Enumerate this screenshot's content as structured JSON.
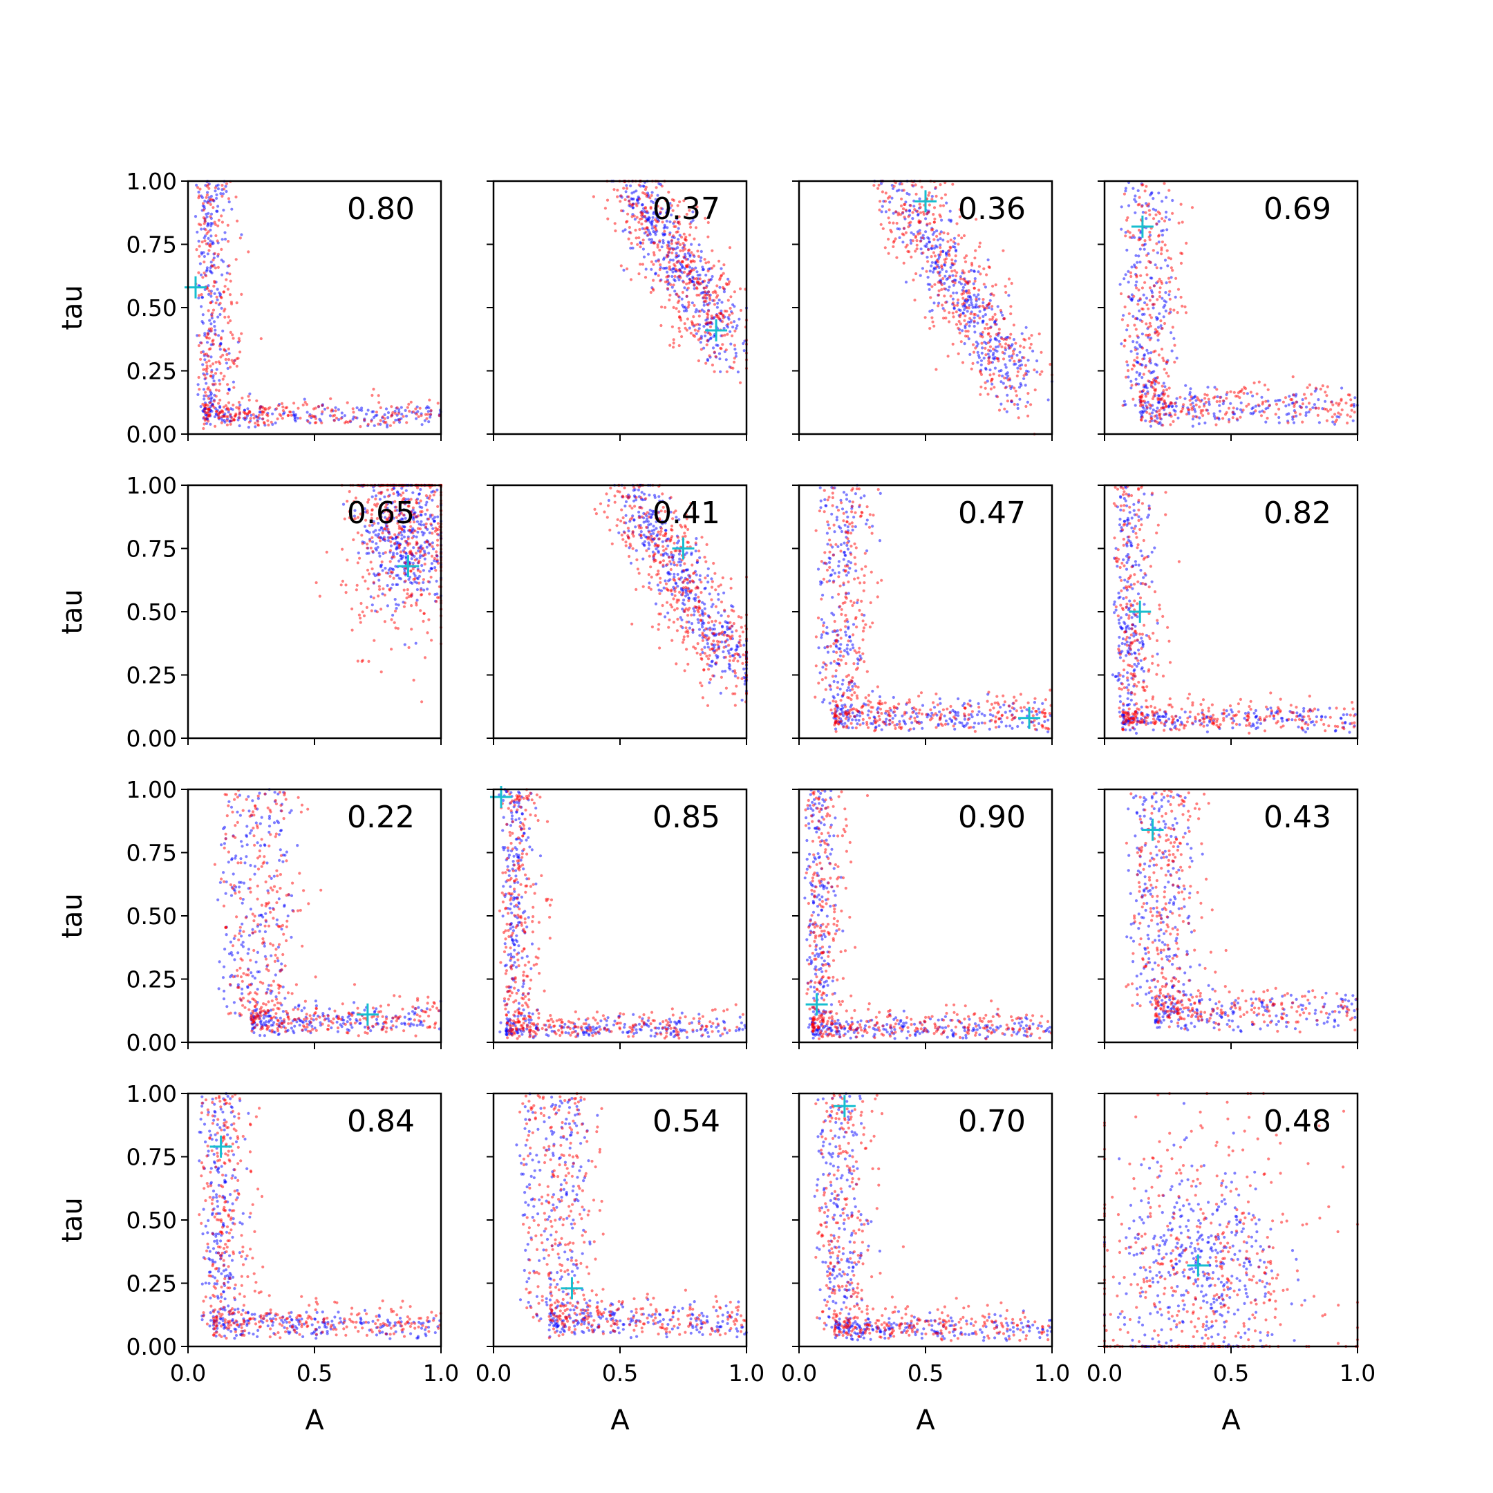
{
  "colors": {
    "series_blue": "#0000ff",
    "series_red": "#ff0000",
    "marker": "#17becf",
    "axes": "#000000",
    "background": "#ffffff"
  },
  "chart_data": {
    "type": "scatter",
    "layout": "4x4 grid of panels with shared axes",
    "xlabel": "A",
    "ylabel": "tau",
    "xlim": [
      0,
      1
    ],
    "ylim": [
      0,
      1
    ],
    "xticks": [
      "0.0",
      "0.5",
      "1.0"
    ],
    "yticks": [
      "0.00",
      "0.25",
      "0.50",
      "0.75",
      "1.00"
    ],
    "grid": false,
    "legend": "none",
    "panels": [
      {
        "label": "0.80",
        "shape": "L",
        "center": [
          0.06,
          0.06
        ],
        "marker": [
          0.03,
          0.58
        ]
      },
      {
        "label": "0.37",
        "shape": "diag",
        "a": [
          0.55,
          0.97
        ],
        "b": [
          0.93,
          0.35
        ],
        "marker": [
          0.88,
          0.41
        ]
      },
      {
        "label": "0.36",
        "shape": "diag",
        "a": [
          0.4,
          0.95
        ],
        "b": [
          0.88,
          0.18
        ],
        "marker": [
          0.5,
          0.92
        ]
      },
      {
        "label": "0.69",
        "shape": "L",
        "center": [
          0.14,
          0.1
        ],
        "marker": [
          0.15,
          0.82
        ]
      },
      {
        "label": "0.65",
        "shape": "blob",
        "center": [
          0.85,
          0.8
        ],
        "spread": [
          0.08,
          0.14
        ],
        "marker": [
          0.87,
          0.68
        ]
      },
      {
        "label": "0.41",
        "shape": "diag",
        "a": [
          0.55,
          0.95
        ],
        "b": [
          0.97,
          0.25
        ],
        "marker": [
          0.75,
          0.75
        ]
      },
      {
        "label": "0.47",
        "shape": "L",
        "center": [
          0.14,
          0.08
        ],
        "marker": [
          0.91,
          0.08
        ]
      },
      {
        "label": "0.82",
        "shape": "L",
        "center": [
          0.07,
          0.06
        ],
        "marker": [
          0.14,
          0.5
        ]
      },
      {
        "label": "0.22",
        "shape": "L",
        "center": [
          0.25,
          0.08
        ],
        "marker": [
          0.71,
          0.11
        ]
      },
      {
        "label": "0.85",
        "shape": "L",
        "center": [
          0.05,
          0.04
        ],
        "marker": [
          0.03,
          0.97
        ]
      },
      {
        "label": "0.90",
        "shape": "L",
        "center": [
          0.05,
          0.04
        ],
        "marker": [
          0.07,
          0.15
        ]
      },
      {
        "label": "0.43",
        "shape": "L",
        "center": [
          0.2,
          0.12
        ],
        "marker": [
          0.19,
          0.84
        ]
      },
      {
        "label": "0.84",
        "shape": "L",
        "center": [
          0.1,
          0.08
        ],
        "marker": [
          0.13,
          0.79
        ]
      },
      {
        "label": "0.54",
        "shape": "L",
        "center": [
          0.22,
          0.1
        ],
        "marker": [
          0.31,
          0.23
        ]
      },
      {
        "label": "0.70",
        "shape": "L",
        "center": [
          0.14,
          0.06
        ],
        "marker": [
          0.18,
          0.95
        ]
      },
      {
        "label": "0.48",
        "shape": "blob",
        "center": [
          0.38,
          0.3
        ],
        "spread": [
          0.16,
          0.2
        ],
        "marker": [
          0.37,
          0.32
        ]
      }
    ]
  }
}
